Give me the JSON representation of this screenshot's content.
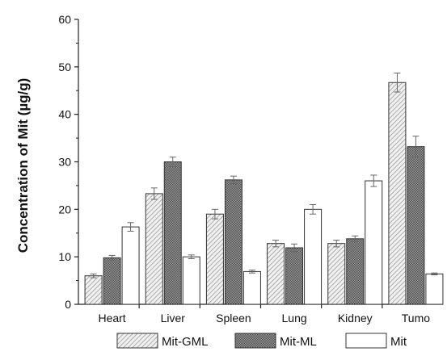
{
  "chart_data": {
    "type": "bar",
    "title": "",
    "xlabel": "",
    "ylabel": "Concentration of Mit (µg/g)",
    "categories": [
      "Heart",
      "Liver",
      "Spleen",
      "Lung",
      "Kidney",
      "Tumo"
    ],
    "ylim": [
      0,
      60
    ],
    "yticks": [
      0,
      10,
      20,
      30,
      40,
      50,
      60
    ],
    "grid": false,
    "legend_position": "bottom",
    "series": [
      {
        "name": "Mit-GML",
        "pattern": "diagonal-hatch",
        "values": [
          6.0,
          23.3,
          19.0,
          12.8,
          12.8,
          46.7
        ],
        "errors": [
          0.4,
          1.2,
          1.0,
          0.7,
          0.7,
          2.0
        ]
      },
      {
        "name": "Mit-ML",
        "pattern": "dense-dots",
        "values": [
          9.8,
          30.0,
          26.2,
          11.9,
          13.8,
          33.2
        ],
        "errors": [
          0.5,
          1.0,
          0.8,
          0.8,
          0.6,
          2.2
        ]
      },
      {
        "name": "Mit",
        "pattern": "none",
        "values": [
          16.3,
          10.0,
          6.9,
          20.0,
          26.0,
          6.4
        ],
        "errors": [
          0.9,
          0.4,
          0.3,
          1.0,
          1.2,
          0.2
        ]
      }
    ],
    "colors": {
      "axis": "#222222",
      "bar_outline": "#333333",
      "hatch": "#9a9a9a",
      "dots": "#5a5a5a",
      "error": "#666666"
    }
  }
}
